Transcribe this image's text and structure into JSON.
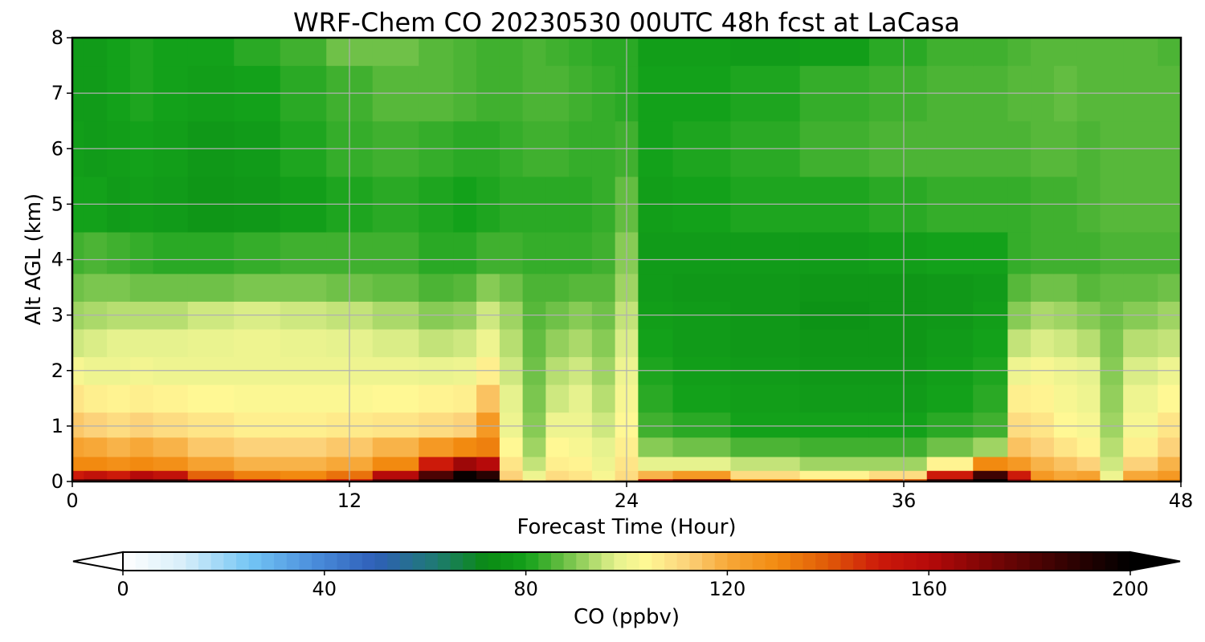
{
  "chart_data": {
    "type": "heatmap",
    "title": "WRF-Chem CO  20230530 00UTC 48h fcst at LaCasa",
    "xlabel": "Forecast Time (Hour)",
    "ylabel": "Alt AGL (km)",
    "xlim": [
      0,
      48
    ],
    "ylim": [
      0,
      8
    ],
    "xticks": [
      "0",
      "12",
      "24",
      "36",
      "48"
    ],
    "yticks": [
      "0",
      "1",
      "2",
      "3",
      "4",
      "5",
      "6",
      "7",
      "8"
    ],
    "grid": true,
    "colorbar": {
      "label": "CO  (ppbv)",
      "range": [
        0,
        200
      ],
      "ticks": [
        "0",
        "40",
        "80",
        "120",
        "160",
        "200"
      ],
      "extend": "both"
    },
    "x_hours": [
      0,
      1,
      2,
      3,
      4,
      6,
      8,
      10,
      12,
      14,
      16,
      17,
      18,
      19,
      20,
      21,
      22,
      23,
      24,
      25,
      27,
      30,
      33,
      36,
      38,
      40,
      41,
      42,
      43,
      44,
      45,
      46,
      48
    ],
    "y_km": [
      0,
      0.1,
      0.3,
      0.6,
      1.0,
      1.5,
      2.0,
      2.5,
      3.0,
      3.5,
      4.0,
      5.0,
      6.0,
      7.0,
      8.0
    ],
    "co_ppbv": [
      [
        175,
        180,
        178,
        182,
        180,
        160,
        150,
        145,
        150,
        178,
        195,
        200,
        200,
        115,
        105,
        112,
        110,
        105,
        112,
        160,
        172,
        130,
        125,
        140,
        185,
        200,
        165,
        130,
        125,
        128,
        102,
        125,
        130
      ],
      [
        150,
        155,
        150,
        160,
        155,
        138,
        132,
        130,
        135,
        160,
        182,
        198,
        190,
        112,
        100,
        110,
        108,
        102,
        110,
        118,
        125,
        110,
        105,
        110,
        150,
        185,
        150,
        125,
        120,
        122,
        100,
        120,
        125
      ],
      [
        130,
        130,
        128,
        130,
        128,
        122,
        118,
        118,
        120,
        130,
        150,
        165,
        160,
        108,
        95,
        106,
        105,
        100,
        108,
        98,
        98,
        95,
        92,
        92,
        105,
        130,
        125,
        118,
        115,
        112,
        96,
        112,
        118
      ],
      [
        122,
        120,
        118,
        120,
        118,
        114,
        112,
        112,
        114,
        118,
        125,
        130,
        132,
        104,
        92,
        104,
        102,
        98,
        106,
        90,
        88,
        85,
        84,
        84,
        88,
        92,
        115,
        112,
        108,
        105,
        94,
        106,
        112
      ],
      [
        114,
        112,
        110,
        112,
        110,
        108,
        106,
        106,
        107,
        108,
        110,
        112,
        125,
        100,
        90,
        100,
        100,
        96,
        104,
        84,
        82,
        80,
        80,
        80,
        82,
        84,
        110,
        108,
        104,
        102,
        92,
        102,
        108
      ],
      [
        108,
        106,
        105,
        106,
        105,
        104,
        103,
        103,
        103,
        104,
        105,
        106,
        115,
        98,
        89,
        96,
        98,
        94,
        102,
        82,
        80,
        79,
        78,
        78,
        80,
        82,
        106,
        105,
        102,
        100,
        91,
        100,
        104
      ],
      [
        102,
        100,
        100,
        101,
        100,
        100,
        100,
        100,
        100,
        100,
        99,
        100,
        106,
        96,
        88,
        94,
        96,
        92,
        100,
        81,
        79,
        78,
        77,
        77,
        79,
        81,
        100,
        102,
        100,
        98,
        90,
        97,
        100
      ],
      [
        96,
        97,
        98,
        98,
        98,
        99,
        100,
        99,
        98,
        97,
        95,
        96,
        100,
        94,
        87,
        91,
        93,
        90,
        97,
        80,
        78,
        77,
        76,
        76,
        78,
        80,
        95,
        97,
        96,
        94,
        89,
        94,
        95
      ],
      [
        92,
        93,
        94,
        94,
        94,
        96,
        97,
        96,
        95,
        93,
        90,
        91,
        96,
        92,
        86,
        88,
        90,
        88,
        95,
        79,
        78,
        77,
        75,
        76,
        77,
        79,
        90,
        93,
        92,
        90,
        88,
        90,
        92
      ],
      [
        88,
        89,
        89,
        88,
        88,
        88,
        89,
        89,
        88,
        87,
        85,
        86,
        90,
        88,
        85,
        85,
        86,
        86,
        92,
        78,
        77,
        77,
        76,
        76,
        77,
        78,
        86,
        88,
        88,
        86,
        87,
        87,
        88
      ],
      [
        84,
        85,
        84,
        83,
        82,
        82,
        83,
        84,
        84,
        84,
        82,
        82,
        84,
        84,
        83,
        83,
        83,
        84,
        90,
        78,
        78,
        78,
        78,
        79,
        80,
        80,
        83,
        84,
        84,
        84,
        85,
        85,
        85
      ],
      [
        80,
        80,
        78,
        79,
        78,
        76,
        77,
        79,
        81,
        82,
        81,
        80,
        81,
        82,
        82,
        82,
        82,
        83,
        87,
        79,
        80,
        81,
        81,
        82,
        83,
        83,
        83,
        84,
        84,
        85,
        86,
        86,
        86
      ],
      [
        79,
        78,
        79,
        80,
        79,
        77,
        78,
        81,
        83,
        84,
        83,
        82,
        82,
        83,
        84,
        84,
        83,
        83,
        84,
        80,
        81,
        82,
        84,
        85,
        85,
        85,
        85,
        86,
        86,
        85,
        86,
        86,
        86
      ],
      [
        78,
        78,
        80,
        81,
        80,
        79,
        80,
        82,
        84,
        86,
        86,
        85,
        84,
        84,
        85,
        85,
        84,
        83,
        82,
        80,
        80,
        81,
        83,
        84,
        85,
        85,
        86,
        86,
        87,
        86,
        86,
        86,
        86
      ],
      [
        78,
        78,
        80,
        81,
        80,
        80,
        82,
        84,
        88,
        88,
        86,
        85,
        84,
        84,
        85,
        84,
        83,
        82,
        82,
        79,
        79,
        78,
        79,
        82,
        84,
        84,
        85,
        86,
        86,
        86,
        86,
        86,
        85
      ]
    ]
  }
}
